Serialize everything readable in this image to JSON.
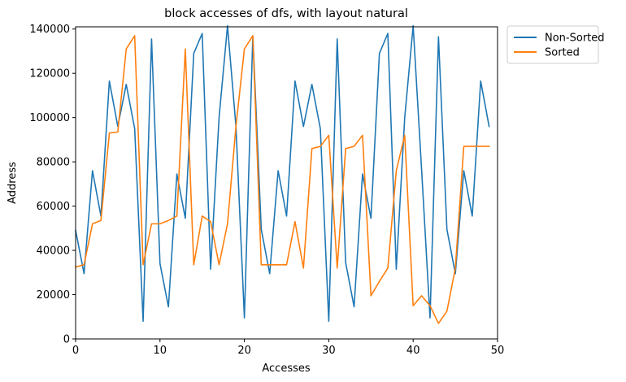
{
  "chart_data": {
    "type": "line",
    "title": "block accesses of dfs, with layout natural",
    "xlabel": "Accesses",
    "ylabel": "Address",
    "xlim": [
      0,
      50
    ],
    "ylim": [
      0,
      141000
    ],
    "xticks": [
      0,
      10,
      20,
      30,
      40,
      50
    ],
    "yticks": [
      0,
      20000,
      40000,
      60000,
      80000,
      100000,
      120000,
      140000
    ],
    "grid": false,
    "legend": {
      "placement": "outside-top-right"
    },
    "x": [
      0,
      1,
      2,
      3,
      4,
      5,
      6,
      7,
      8,
      9,
      10,
      11,
      12,
      13,
      14,
      15,
      16,
      17,
      18,
      19,
      20,
      21,
      22,
      23,
      24,
      25,
      26,
      27,
      28,
      29,
      30,
      31,
      32,
      33,
      34,
      35,
      36,
      37,
      38,
      39,
      40,
      41,
      42,
      43,
      44,
      45,
      46,
      47,
      48,
      49
    ],
    "series": [
      {
        "name": "Non-Sorted",
        "color": "#1f77b4",
        "values": [
          49000,
          29500,
          76000,
          55500,
          116500,
          96000,
          115000,
          95000,
          8000,
          135500,
          34000,
          14500,
          74500,
          54500,
          129000,
          138000,
          31500,
          100000,
          141500,
          96000,
          9500,
          137000,
          49500,
          29500,
          76000,
          55500,
          116500,
          96000,
          115000,
          95000,
          8000,
          135500,
          34500,
          14500,
          74500,
          54500,
          129000,
          138000,
          31500,
          100000,
          141500,
          76500,
          9500,
          136500,
          49500,
          29500,
          76000,
          55500,
          116500,
          96000
        ]
      },
      {
        "name": "Sorted",
        "color": "#ff7f0e",
        "values": [
          32500,
          33500,
          52000,
          53500,
          93000,
          93500,
          131000,
          137000,
          33500,
          52000,
          52000,
          53500,
          55500,
          131000,
          33500,
          55500,
          53000,
          33500,
          52000,
          96000,
          131000,
          137000,
          33500,
          33500,
          33500,
          33500,
          53000,
          32000,
          86000,
          87000,
          92000,
          32000,
          86000,
          87000,
          92000,
          19500,
          26000,
          32000,
          76000,
          92000,
          15000,
          19500,
          15000,
          7000,
          12500,
          32000,
          87000,
          87000,
          87000,
          87000
        ]
      }
    ]
  }
}
